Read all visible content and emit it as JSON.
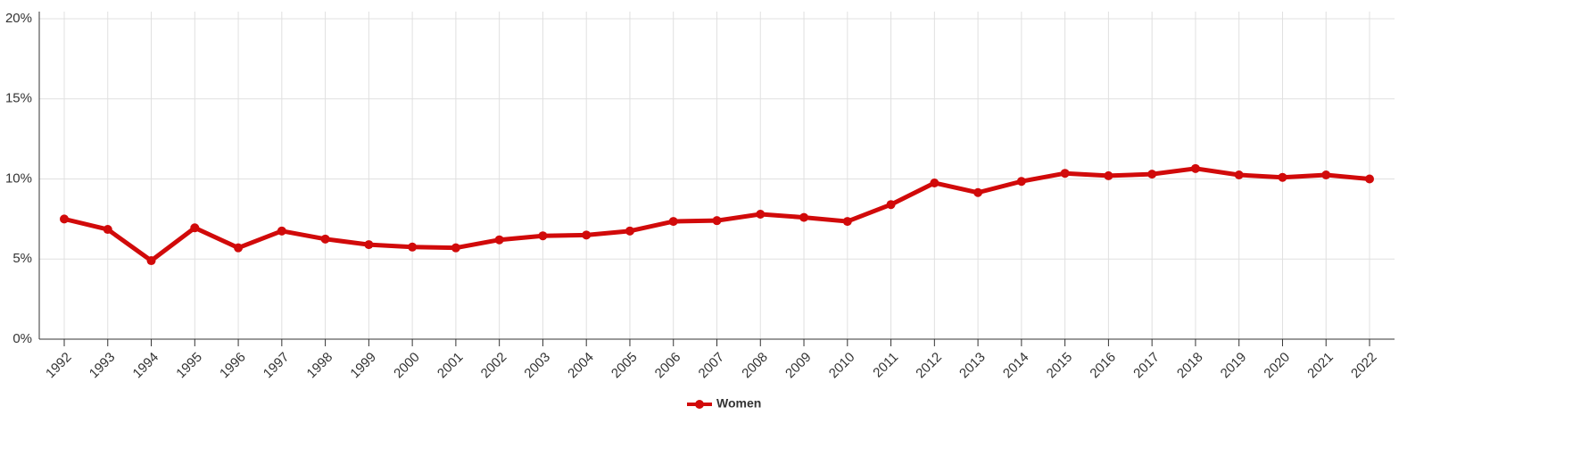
{
  "chart_data": {
    "type": "line",
    "categories": [
      "1992",
      "1993",
      "1994",
      "1995",
      "1996",
      "1997",
      "1998",
      "1999",
      "2000",
      "2001",
      "2002",
      "2003",
      "2004",
      "2005",
      "2006",
      "2007",
      "2008",
      "2009",
      "2010",
      "2011",
      "2012",
      "2013",
      "2014",
      "2015",
      "2016",
      "2017",
      "2018",
      "2019",
      "2020",
      "2021",
      "2022"
    ],
    "series": [
      {
        "name": "Women",
        "color": "#d10a0a",
        "values": [
          7.5,
          6.85,
          4.9,
          6.95,
          5.7,
          6.75,
          6.25,
          5.9,
          5.75,
          5.7,
          6.2,
          6.45,
          6.5,
          6.75,
          7.35,
          7.4,
          7.8,
          7.6,
          7.35,
          8.4,
          9.75,
          9.15,
          9.85,
          10.35,
          10.2,
          10.3,
          10.65,
          10.25,
          10.1,
          10.25,
          10.0
        ]
      }
    ],
    "ylim": [
      0,
      20
    ],
    "yticks": [
      {
        "value": 0,
        "label": "0%"
      },
      {
        "value": 5,
        "label": "5%"
      },
      {
        "value": 10,
        "label": "10%"
      },
      {
        "value": 15,
        "label": "15%"
      },
      {
        "value": 20,
        "label": "20%"
      }
    ],
    "grid": true,
    "legend": "bottom"
  }
}
